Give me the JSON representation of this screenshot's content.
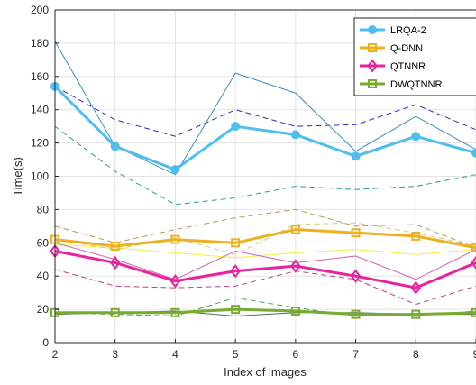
{
  "chart_data": {
    "type": "line",
    "title": "",
    "xlabel": "Index of images",
    "ylabel": "Time(s)",
    "x": [
      2,
      3,
      4,
      5,
      6,
      7,
      8,
      9
    ],
    "xticks": [
      "2",
      "3",
      "4",
      "5",
      "6",
      "7",
      "8",
      "9"
    ],
    "xlim": [
      2,
      9
    ],
    "ylim": [
      0,
      200
    ],
    "yticks": [
      "0",
      "20",
      "40",
      "60",
      "80",
      "100",
      "120",
      "140",
      "160",
      "180",
      "200"
    ],
    "grid": true,
    "legend_position": "top-right",
    "series": [
      {
        "name": "LRQA-2",
        "color": "#4dbeee",
        "marker": "circle",
        "values": [
          154,
          118,
          104,
          130,
          125,
          112,
          124,
          114
        ],
        "bands": [
          {
            "color": "#2c2cc8",
            "values": [
              154,
              134,
              124,
              140,
              130,
              131,
              143,
              128
            ]
          },
          {
            "color": "#3a8fc8",
            "values": [
              181,
              118,
              101,
              162,
              150,
              115,
              136,
              116
            ]
          },
          {
            "color": "#2a9a9a",
            "values": [
              130,
              103,
              83,
              87,
              94,
              92,
              94,
              101
            ]
          }
        ]
      },
      {
        "name": "Q-DNN",
        "color": "#edb120",
        "marker": "square",
        "values": [
          62,
          58,
          62,
          60,
          68,
          66,
          64,
          57
        ],
        "bands": [
          {
            "color": "#b89a50",
            "values": [
              70,
              60,
              68,
              75,
              80,
              70,
              71,
              57
            ]
          },
          {
            "color": "#f0f03c",
            "values": [
              59,
              57,
              54,
              51,
              54,
              56,
              53,
              56
            ]
          },
          {
            "color": "#d8c478",
            "values": [
              62,
              56,
              63,
              53,
              71,
              72,
              66,
              58
            ]
          }
        ]
      },
      {
        "name": "QTNNR",
        "color": "#e823a0",
        "marker": "diamond",
        "values": [
          55,
          48,
          37,
          43,
          46,
          40,
          33,
          48
        ],
        "bands": [
          {
            "color": "#c04080",
            "values": [
              44,
              34,
              33,
              34,
              43,
              38,
              23,
              34
            ]
          },
          {
            "color": "#d060b0",
            "values": [
              60,
              50,
              38,
              55,
              48,
              52,
              38,
              56
            ]
          }
        ]
      },
      {
        "name": "DWQTNNR",
        "color": "#77ac30",
        "marker": "square",
        "values": [
          18,
          18,
          18,
          20,
          19,
          17,
          17,
          18
        ],
        "bands": [
          {
            "color": "#50a050",
            "values": [
              18,
              17,
              16,
              27,
              21,
              16,
              16,
              19
            ]
          },
          {
            "color": "#507050",
            "values": [
              17,
              18,
              19,
              16,
              18,
              18,
              17,
              17
            ]
          }
        ]
      }
    ]
  }
}
